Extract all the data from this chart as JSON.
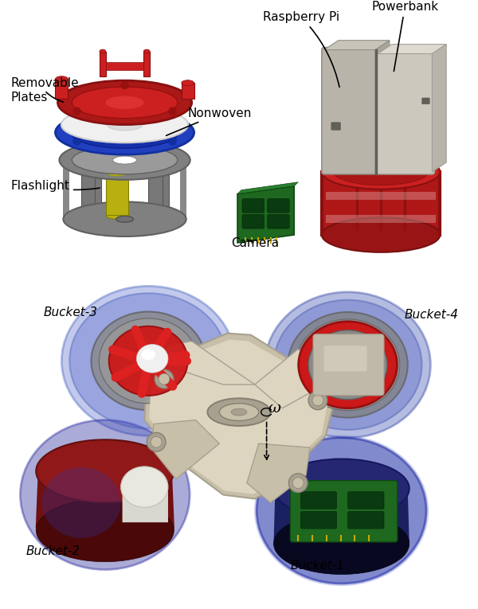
{
  "background_color": "#ffffff",
  "figsize": [
    6.0,
    7.65
  ],
  "dpi": 100,
  "colors": {
    "gray_cage": "#808080",
    "gray_dark": "#606060",
    "gray_light": "#a0a0a0",
    "gray_mid": "#909090",
    "red_bright": "#cc2222",
    "red_dark": "#8b1a1a",
    "red_mid": "#aa2020",
    "blue_trans": "#7080d0",
    "blue_dark": "#3040a0",
    "blue_navy": "#2a3070",
    "blue_maroon": "#5a2040",
    "green_pcb": "#2a7a30",
    "green_dark": "#1a5a20",
    "yellow": "#c8c020",
    "beige": "#c8bfa8",
    "beige_dark": "#a8a090",
    "beige_light": "#ddd5c0",
    "pb_gray": "#c8c4bc",
    "pb_light": "#dcdad2",
    "pb_dark": "#b0aca4",
    "white": "#f5f5f5",
    "off_white": "#e8e8e0",
    "maroon": "#7a1818"
  },
  "labels": {
    "raspberry_pi": "Raspberry Pi",
    "powerbank": "Powerbank",
    "removable_plates": "Removable\nPlates",
    "nonwoven": "Nonwoven",
    "flashlight": "Flashlight",
    "camera": "Camera",
    "bucket1": "Bucket-1",
    "bucket2": "Bucket-2",
    "bucket3": "Bucket-3",
    "bucket4": "Bucket-4",
    "omega": "ω"
  }
}
